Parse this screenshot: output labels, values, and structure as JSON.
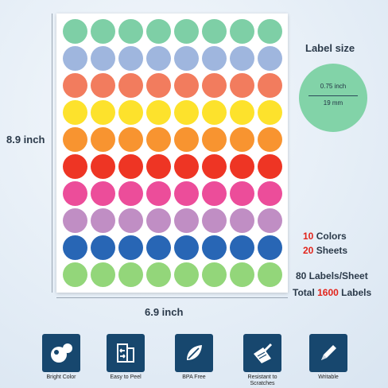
{
  "sheet": {
    "rows": [
      {
        "color": "#7ecfa6"
      },
      {
        "color": "#9fb6de"
      },
      {
        "color": "#f27c5e"
      },
      {
        "color": "#fde22c"
      },
      {
        "color": "#f89430"
      },
      {
        "color": "#ee3524"
      },
      {
        "color": "#ec4d9a"
      },
      {
        "color": "#c08ec4"
      },
      {
        "color": "#2866b5"
      },
      {
        "color": "#93d67a"
      }
    ],
    "columns": 8
  },
  "dimensions": {
    "height": "8.9 inch",
    "width": "6.9 inch"
  },
  "label_size": {
    "title": "Label size",
    "inch": "0.75 inch",
    "mm": "19 mm"
  },
  "stats": {
    "colors_num": "10",
    "colors_label": " Colors",
    "sheets_num": "20",
    "sheets_label": " Sheets",
    "per_sheet": "80 Labels/Sheet",
    "total_prefix": "Total ",
    "total_num": "1600",
    "total_suffix": " Labels"
  },
  "features": [
    {
      "label": "Bright Color",
      "icon": "bright-color-icon"
    },
    {
      "label": "Easy to Peel",
      "icon": "peel-icon"
    },
    {
      "label": "BPA Free",
      "icon": "leaf-icon"
    },
    {
      "label": "Resistant to Scratches",
      "icon": "scratch-icon"
    },
    {
      "label": "Writable",
      "icon": "pencil-icon"
    }
  ]
}
